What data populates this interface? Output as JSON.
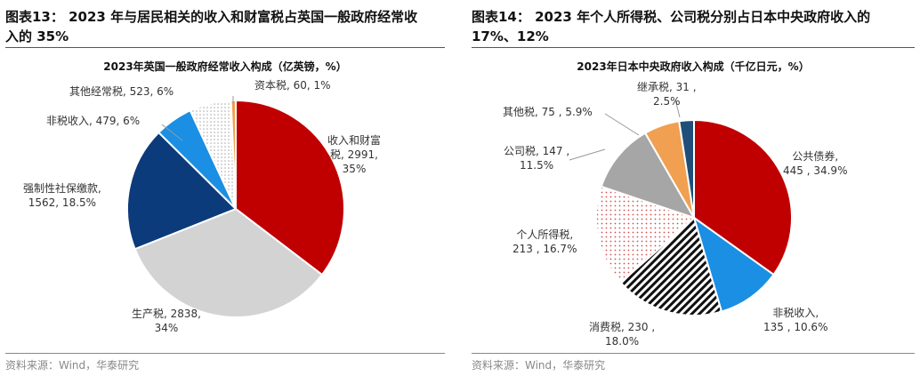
{
  "figures": [
    {
      "title_line1": "图表13：  2023 年与居民相关的收入和财富税占英国一般政府经常收",
      "title_line2": "入的 35%",
      "source": "资料来源：Wind，华泰研究"
    },
    {
      "title_line1": "图表14：  2023 年个人所得税、公司税分别占日本中央政府收入的",
      "title_line2": "17%、12%",
      "source": "资料来源：Wind，华泰研究"
    }
  ],
  "chart_data": [
    {
      "type": "pie",
      "title": "2023年英国一般政府经常收入构成（亿英镑，%）",
      "slices": [
        {
          "label": "收入和财富税",
          "value": 2991,
          "pct": "35%",
          "color": "#C00000",
          "text": [
            "收入和财富",
            "税, 2991,",
            "35%"
          ]
        },
        {
          "label": "生产税",
          "value": 2838,
          "pct": "34%",
          "color": "#D3D3D3",
          "text": [
            "生产税, 2838,",
            "34%"
          ]
        },
        {
          "label": "强制性社保缴款",
          "value": 1562,
          "pct": "18.5%",
          "color": "#0B3B7A",
          "text": [
            "强制性社保缴款,",
            "1562, 18.5%"
          ]
        },
        {
          "label": "非税收入",
          "value": 479,
          "pct": "6%",
          "color": "#1A8FE3",
          "text": [
            "非税收入, 479, 6%"
          ]
        },
        {
          "label": "其他经常税",
          "value": 523,
          "pct": "6%",
          "color": "dotted-gray",
          "text": [
            "其他经常税, 523, 6%"
          ]
        },
        {
          "label": "资本税",
          "value": 60,
          "pct": "1%",
          "color": "#F0A050",
          "text": [
            "资本税, 60, 1%"
          ]
        }
      ]
    },
    {
      "type": "pie",
      "title": "2023年日本中央政府收入构成（千亿日元，%）",
      "slices": [
        {
          "label": "公共债券",
          "value": 445,
          "pct": "34.9%",
          "color": "#C00000",
          "text": [
            "公共债券,",
            "445 , 34.9%"
          ]
        },
        {
          "label": "非税收入",
          "value": 135,
          "pct": "10.6%",
          "color": "#1A8FE3",
          "text": [
            "非税收入,",
            "135 , 10.6%"
          ]
        },
        {
          "label": "消费税",
          "value": 230,
          "pct": "18.0%",
          "color": "black-white-stripes",
          "text": [
            "消费税, 230 ,",
            "18.0%"
          ]
        },
        {
          "label": "个人所得税",
          "value": 213,
          "pct": "16.7%",
          "color": "dotted-red",
          "text": [
            "个人所得税,",
            "213 , 16.7%"
          ]
        },
        {
          "label": "公司税",
          "value": 147,
          "pct": "11.5%",
          "color": "#A6A6A6",
          "text": [
            "公司税, 147 ,",
            "11.5%"
          ]
        },
        {
          "label": "其他税",
          "value": 75,
          "pct": "5.9%",
          "color": "#F0A050",
          "text": [
            "其他税, 75 , 5.9%"
          ]
        },
        {
          "label": "继承税",
          "value": 31,
          "pct": "2.5%",
          "color": "#1F4E79",
          "text": [
            "继承税, 31 ,",
            "2.5%"
          ]
        }
      ]
    }
  ]
}
